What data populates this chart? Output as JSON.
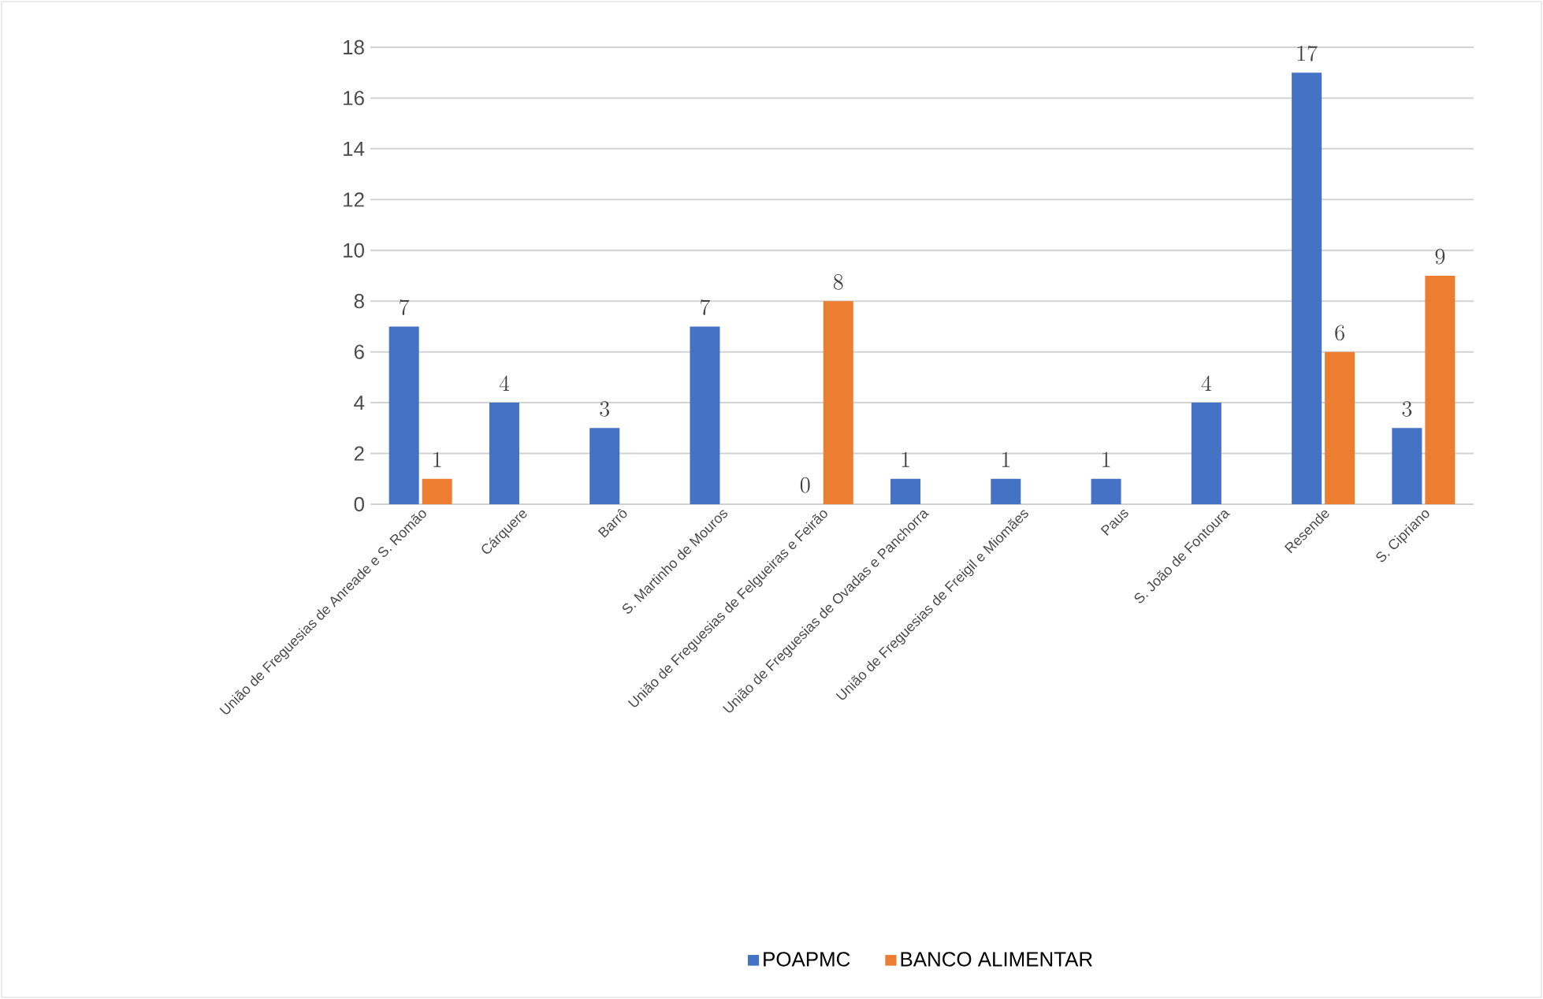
{
  "chart_data": {
    "type": "bar",
    "categories": [
      "União de Freguesias de Anreade e S. Romão",
      "Cárquere",
      "Barrô",
      "S. Martinho de Mouros",
      "União de Freguesias de Felgueiras e Feirão",
      "União de Freguesias de Ovadas e Panchorra",
      "União de Freguesias de Freigil e Miomães",
      "Paus",
      "S. João de Fontoura",
      "Resende",
      "S. Cipriano"
    ],
    "series": [
      {
        "name": "POAPMC",
        "color": "#4472c4",
        "values": [
          7,
          4,
          3,
          7,
          0,
          1,
          1,
          1,
          4,
          17,
          3
        ]
      },
      {
        "name": "BANCO ALIMENTAR",
        "color": "#ed7d31",
        "values": [
          1,
          null,
          null,
          null,
          8,
          null,
          null,
          null,
          null,
          6,
          9
        ]
      }
    ],
    "ylim": [
      0,
      18
    ],
    "yticks": [
      0,
      2,
      4,
      6,
      8,
      10,
      12,
      14,
      16,
      18
    ],
    "grid": "y",
    "legend": "bottom",
    "data_labels": true
  }
}
